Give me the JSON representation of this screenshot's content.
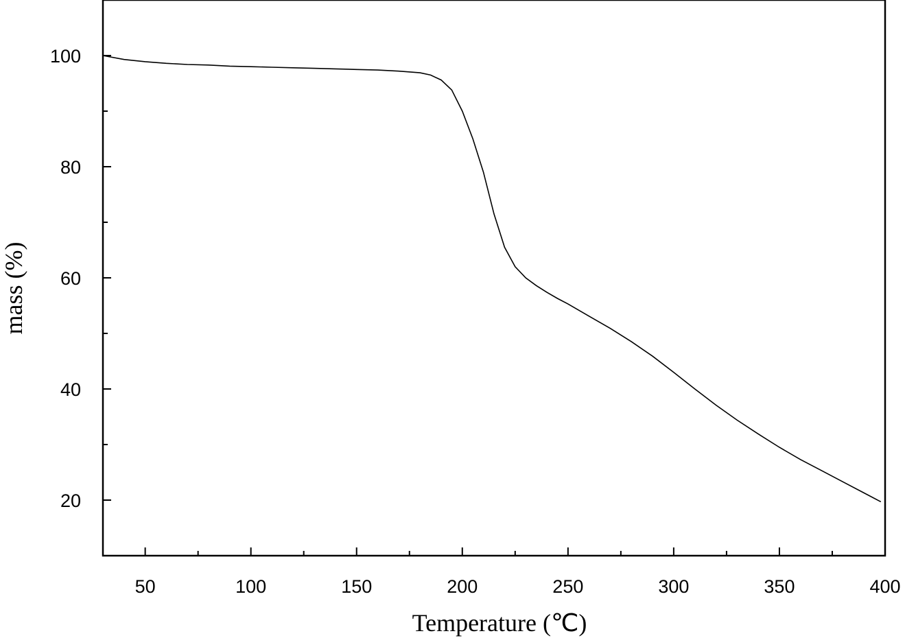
{
  "chart_data": {
    "type": "line",
    "title": "",
    "xlabel": "Temperature (℃)",
    "ylabel": "mass (%)",
    "xlim": [
      30,
      400
    ],
    "ylim": [
      10,
      110
    ],
    "xticks": [
      50,
      100,
      150,
      200,
      250,
      300,
      350,
      400
    ],
    "yticks": [
      20,
      40,
      60,
      80,
      100
    ],
    "grid": false,
    "series": [
      {
        "color": "#000000",
        "x": [
          30,
          40,
          50,
          60,
          70,
          80,
          90,
          100,
          110,
          120,
          130,
          140,
          150,
          160,
          170,
          180,
          185,
          190,
          195,
          200,
          205,
          210,
          215,
          220,
          225,
          230,
          235,
          240,
          245,
          250,
          260,
          270,
          280,
          290,
          300,
          310,
          320,
          330,
          340,
          350,
          360,
          370,
          380,
          390,
          398
        ],
        "y": [
          100,
          99.3,
          98.9,
          98.6,
          98.4,
          98.3,
          98.1,
          98.0,
          97.9,
          97.8,
          97.7,
          97.6,
          97.5,
          97.4,
          97.2,
          96.9,
          96.5,
          95.6,
          93.8,
          90.0,
          85.0,
          79.0,
          71.5,
          65.5,
          62.0,
          60.0,
          58.6,
          57.4,
          56.3,
          55.3,
          53.1,
          50.9,
          48.5,
          45.9,
          43.0,
          40.0,
          37.1,
          34.4,
          31.9,
          29.5,
          27.3,
          25.3,
          23.3,
          21.3,
          19.7
        ]
      }
    ]
  }
}
